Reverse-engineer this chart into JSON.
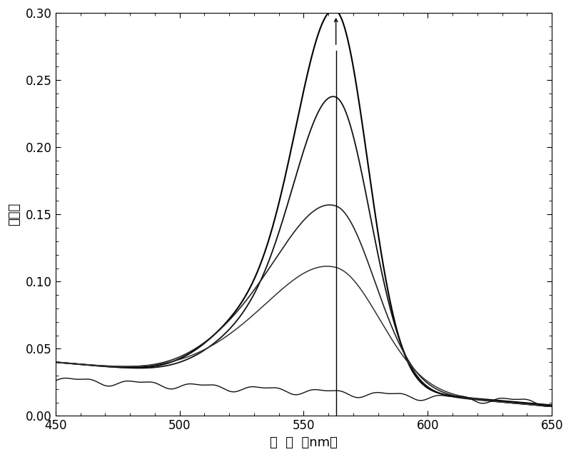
{
  "xlim": [
    450,
    650
  ],
  "ylim": [
    0.0,
    0.3
  ],
  "xticks": [
    450,
    500,
    550,
    600,
    650
  ],
  "yticks": [
    0.0,
    0.05,
    0.1,
    0.15,
    0.2,
    0.25,
    0.3
  ],
  "xlabel": "波  长  （nm）",
  "ylabel": "吸光度",
  "vertical_line_x": 563,
  "background_color": "#ffffff",
  "axis_fontsize": 13,
  "tick_fontsize": 12,
  "curves": [
    {
      "peak_abs": 0.272,
      "peak_wl": 563,
      "peak_sigma_l": 16,
      "peak_sigma_r": 13,
      "shoulder_abs": 0.042,
      "shoulder_wl": 530,
      "shoulder_sigma": 18,
      "baseline_l": 0.04,
      "baseline_r": 0.008,
      "color": "#000000",
      "linewidth": 1.5
    },
    {
      "peak_abs": 0.21,
      "peak_wl": 563,
      "peak_sigma_l": 17,
      "peak_sigma_r": 14,
      "shoulder_abs": 0.032,
      "shoulder_wl": 530,
      "shoulder_sigma": 18,
      "baseline_l": 0.04,
      "baseline_r": 0.007,
      "color": "#111111",
      "linewidth": 1.3
    },
    {
      "peak_abs": 0.13,
      "peak_wl": 563,
      "peak_sigma_l": 22,
      "peak_sigma_r": 16,
      "shoulder_abs": 0.025,
      "shoulder_wl": 527,
      "shoulder_sigma": 20,
      "baseline_l": 0.04,
      "baseline_r": 0.007,
      "color": "#222222",
      "linewidth": 1.2
    },
    {
      "peak_abs": 0.085,
      "peak_wl": 563,
      "peak_sigma_l": 24,
      "peak_sigma_r": 18,
      "shoulder_abs": 0.016,
      "shoulder_wl": 527,
      "shoulder_sigma": 22,
      "baseline_l": 0.04,
      "baseline_r": 0.007,
      "color": "#333333",
      "linewidth": 1.1
    },
    {
      "peak_abs": 0.0,
      "baseline_l": 0.027,
      "baseline_r": 0.01,
      "color": "#111111",
      "linewidth": 1.0
    }
  ]
}
